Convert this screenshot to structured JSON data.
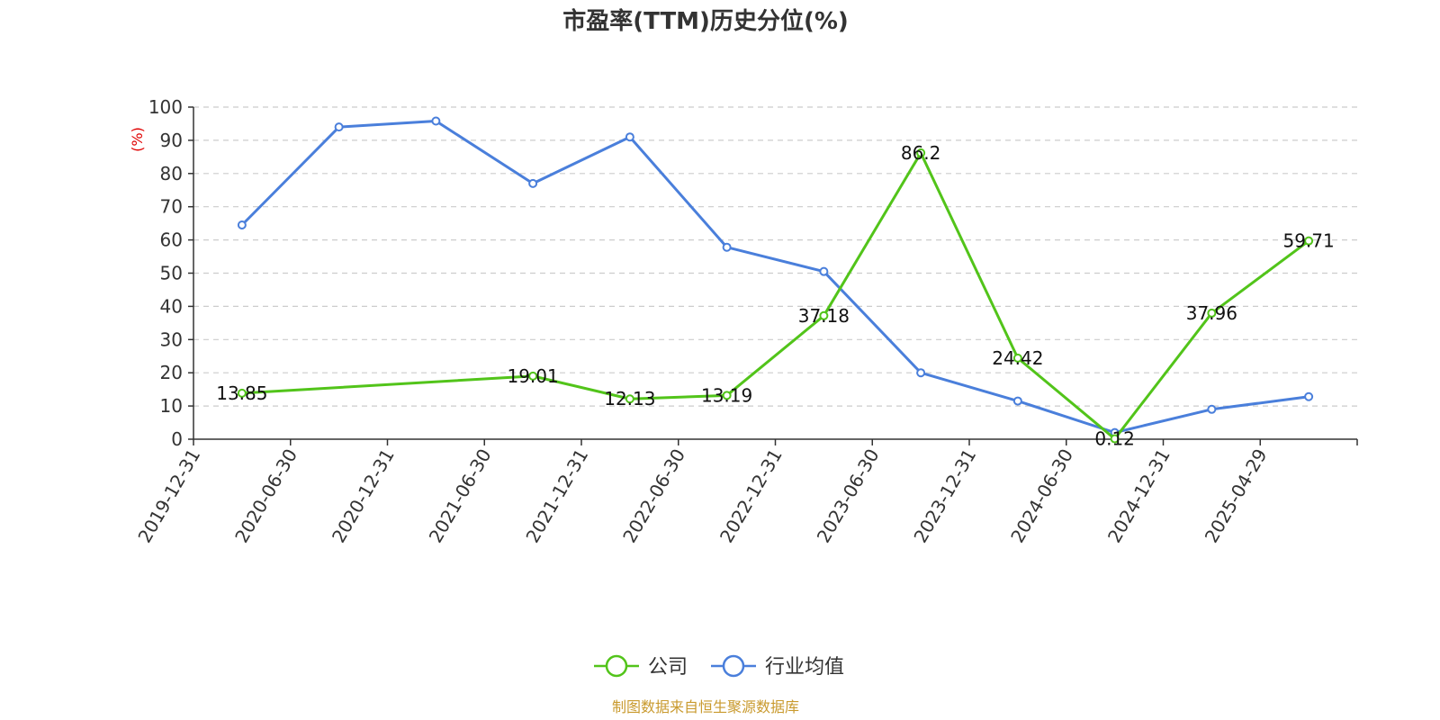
{
  "chart_data": {
    "type": "line",
    "title": "市盈率(TTM)历史分位(%)",
    "ylabel": "(%)",
    "ylim": [
      0,
      100
    ],
    "yticks": [
      0,
      10,
      20,
      30,
      40,
      50,
      60,
      70,
      80,
      90,
      100
    ],
    "categories": [
      "2019-12-31",
      "2020-06-30",
      "2020-12-31",
      "2021-06-30",
      "2021-12-31",
      "2022-06-30",
      "2022-12-31",
      "2023-06-30",
      "2023-12-31",
      "2024-06-30",
      "2024-12-31",
      "2025-04-29"
    ],
    "grid": "horizontal-dashed",
    "legend_position": "bottom-center",
    "series": [
      {
        "name": "公司",
        "color": "#52c41a",
        "values": [
          13.85,
          null,
          null,
          19.01,
          12.13,
          13.19,
          37.18,
          86.2,
          24.42,
          0.12,
          37.96,
          59.71
        ],
        "labels": [
          "13.85",
          null,
          null,
          "19.01",
          "12.13",
          "13.19",
          "37.18",
          "86.2",
          "24.42",
          "0.12",
          "37.96",
          "59.71"
        ]
      },
      {
        "name": "行业均值",
        "color": "#4a7fdb",
        "values": [
          64.5,
          94.0,
          95.8,
          77.0,
          91.0,
          57.8,
          50.5,
          20.0,
          11.5,
          2.0,
          9.0,
          12.8
        ]
      }
    ]
  },
  "footer": {
    "source": "制图数据来自恒生聚源数据库"
  }
}
